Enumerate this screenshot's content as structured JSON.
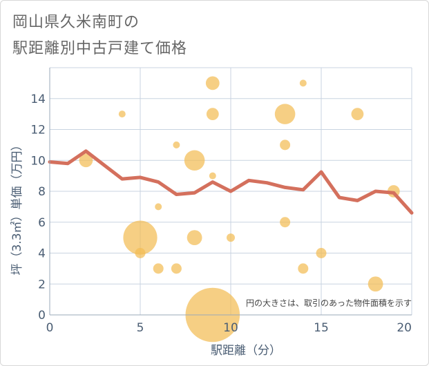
{
  "chart_data": {
    "type": "scatter",
    "title_line1": "岡山県久米南町の",
    "title_line2": "駅距離別中古戸建て価格",
    "xlabel": "駅距離（分）",
    "ylabel": "坪（3.3㎡）単価（万円）",
    "xlim": [
      0,
      20
    ],
    "ylim": [
      0,
      16
    ],
    "xticks": [
      0,
      5,
      10,
      15,
      20
    ],
    "yticks": [
      0,
      2,
      4,
      6,
      8,
      10,
      12,
      14
    ],
    "grid": true,
    "note": "円の大きさは、取引のあった物件面積を示す",
    "bubbles": [
      {
        "x": 2,
        "y": 10,
        "size": 2
      },
      {
        "x": 4,
        "y": 13,
        "size": 1
      },
      {
        "x": 5,
        "y": 5,
        "size": 5
      },
      {
        "x": 5,
        "y": 4,
        "size": 1.5
      },
      {
        "x": 6,
        "y": 7,
        "size": 1
      },
      {
        "x": 6,
        "y": 3,
        "size": 1.5
      },
      {
        "x": 7,
        "y": 11,
        "size": 1
      },
      {
        "x": 7,
        "y": 3,
        "size": 1.5
      },
      {
        "x": 8,
        "y": 10,
        "size": 3
      },
      {
        "x": 8,
        "y": 5,
        "size": 2.2
      },
      {
        "x": 9,
        "y": 15,
        "size": 2
      },
      {
        "x": 9,
        "y": 13,
        "size": 1.8
      },
      {
        "x": 9,
        "y": 9,
        "size": 1
      },
      {
        "x": 9,
        "y": 0,
        "size": 8
      },
      {
        "x": 10,
        "y": 5,
        "size": 1.2
      },
      {
        "x": 13,
        "y": 13,
        "size": 3
      },
      {
        "x": 13,
        "y": 11,
        "size": 1.5
      },
      {
        "x": 13,
        "y": 6,
        "size": 1.5
      },
      {
        "x": 14,
        "y": 15,
        "size": 1
      },
      {
        "x": 14,
        "y": 3,
        "size": 1.5
      },
      {
        "x": 15,
        "y": 4,
        "size": 1.5
      },
      {
        "x": 17,
        "y": 13,
        "size": 1.8
      },
      {
        "x": 18,
        "y": 2,
        "size": 2.2
      },
      {
        "x": 19,
        "y": 8,
        "size": 1.8
      }
    ],
    "line": {
      "x": [
        0,
        1,
        2,
        3,
        4,
        5,
        6,
        7,
        8,
        9,
        10,
        11,
        12,
        13,
        14,
        15,
        16,
        17,
        18,
        19,
        20
      ],
      "y": [
        9.9,
        9.8,
        10.6,
        9.7,
        8.8,
        8.9,
        8.6,
        7.8,
        7.9,
        8.6,
        8.0,
        8.7,
        8.55,
        8.25,
        8.1,
        9.25,
        7.6,
        7.4,
        8.0,
        7.9,
        6.6
      ]
    },
    "colors": {
      "bubble": "#f3bd55",
      "line": "#d4705d",
      "grid": "#c8d3e0",
      "axis": "#9aa8b8"
    }
  }
}
